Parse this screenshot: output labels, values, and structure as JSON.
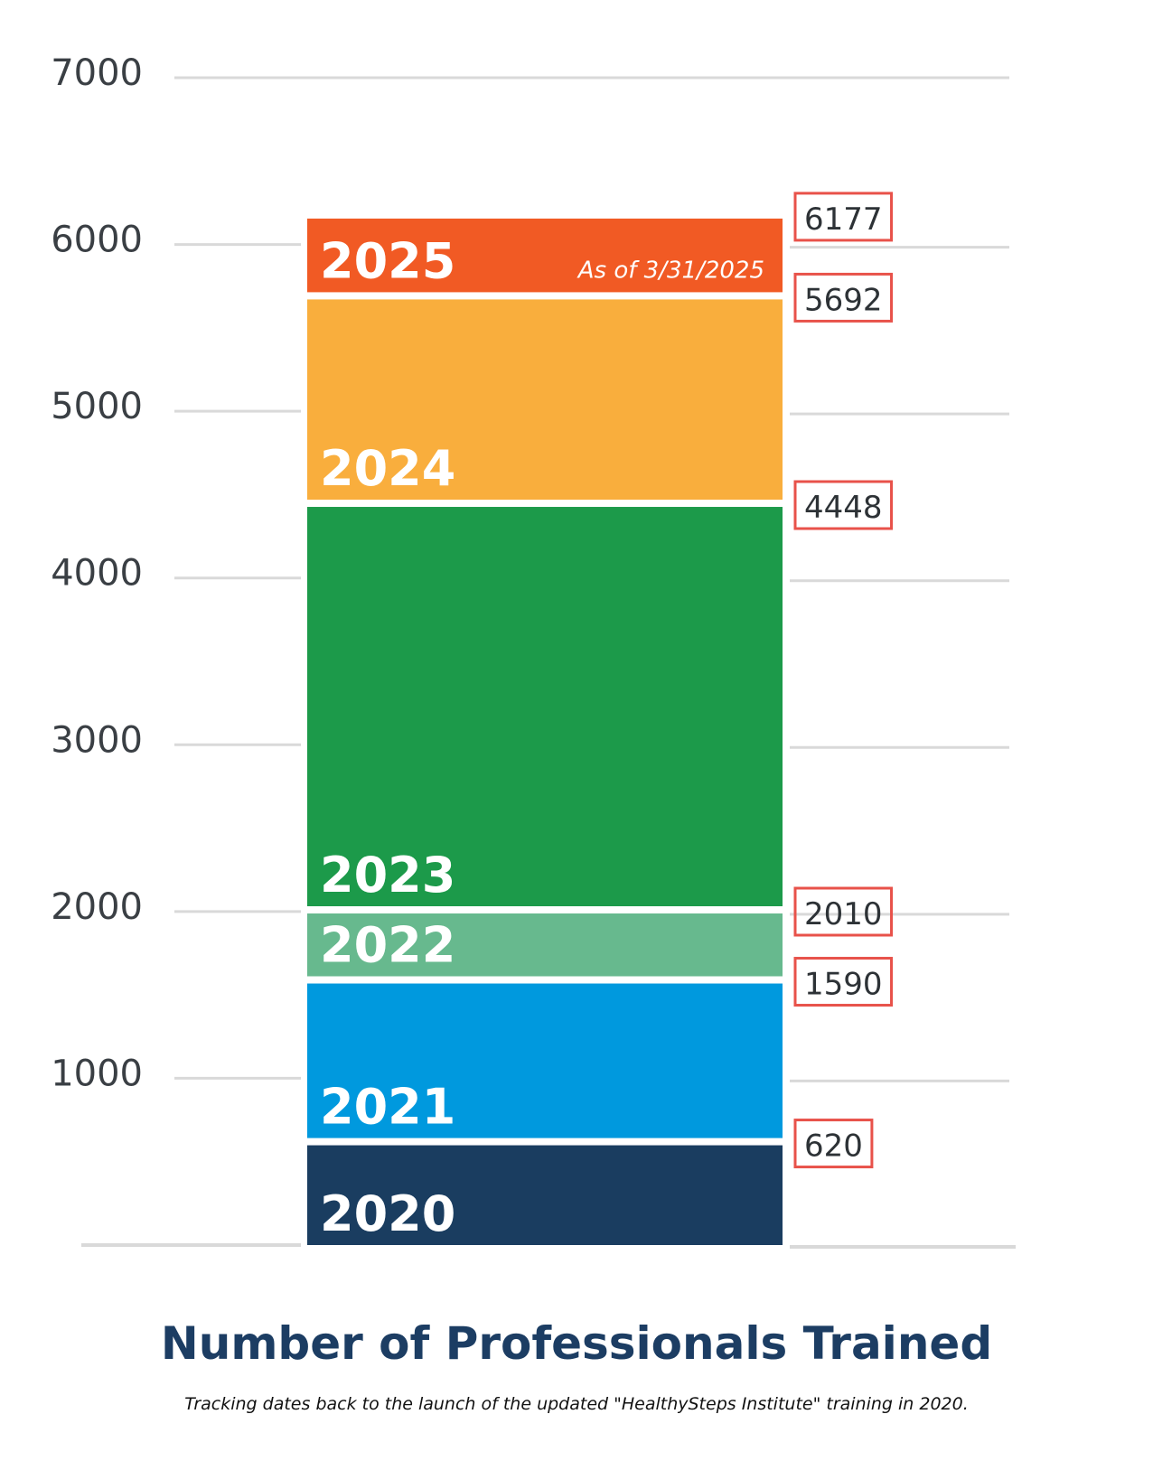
{
  "chart_data": {
    "type": "bar",
    "title": "Number of Professionals Trained",
    "subtitle": "Tracking dates back to the launch of the updated \"HealthySteps Institute\" training in 2020.",
    "xlabel": "",
    "ylabel": "",
    "ylim": [
      0,
      7000
    ],
    "yticks": [
      1000,
      2000,
      3000,
      4000,
      5000,
      6000,
      7000
    ],
    "grid": true,
    "stacked": true,
    "segments": [
      {
        "year": "2020",
        "start": 0,
        "end": 620,
        "label": "620",
        "color": "#1a3d60"
      },
      {
        "year": "2021",
        "start": 620,
        "end": 1590,
        "label": "1590",
        "color": "#0099de"
      },
      {
        "year": "2022",
        "start": 1590,
        "end": 2010,
        "label": "2010",
        "color": "#67b98e"
      },
      {
        "year": "2023",
        "start": 2010,
        "end": 4448,
        "label": "4448",
        "color": "#1c9a4a"
      },
      {
        "year": "2024",
        "start": 4448,
        "end": 5692,
        "label": "5692",
        "color": "#f9ae3d"
      },
      {
        "year": "2025",
        "start": 5692,
        "end": 6177,
        "label": "6177",
        "color": "#f15a24",
        "note": "As of 3/31/2025"
      }
    ],
    "label_box_color": "#e8524a",
    "grid_color": "#d9d9d9"
  }
}
